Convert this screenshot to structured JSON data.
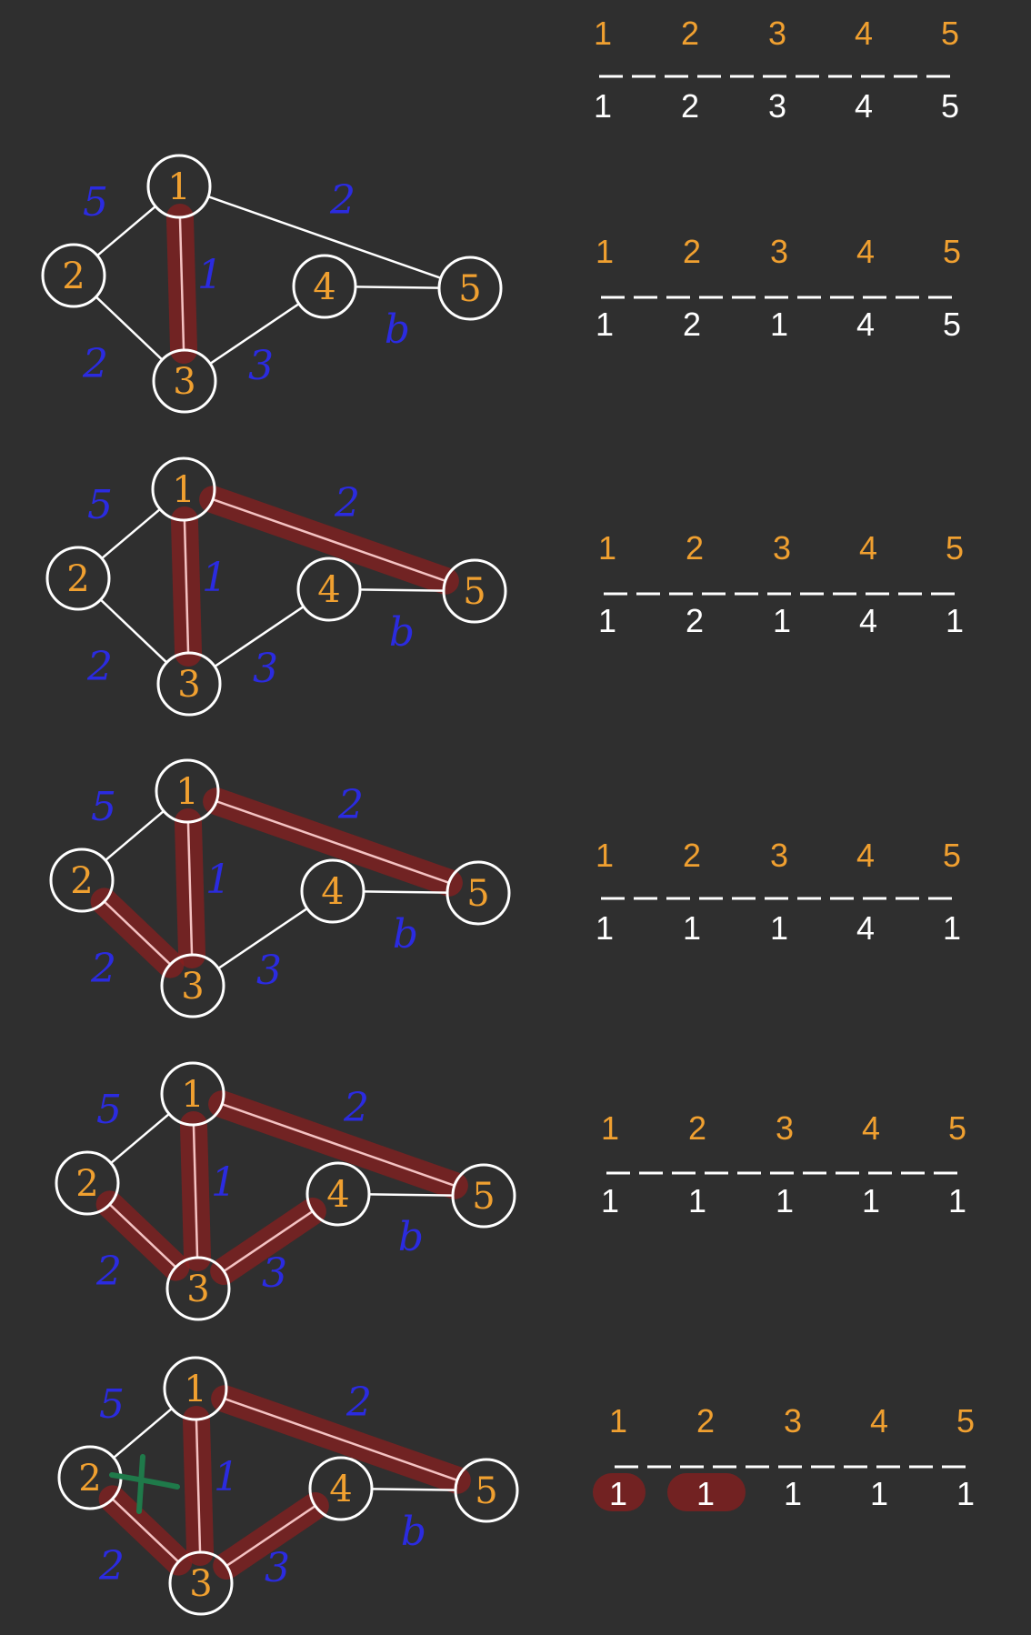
{
  "graph": {
    "nodes": [
      "1",
      "2",
      "3",
      "4",
      "5"
    ],
    "edges": [
      {
        "id": "1-2",
        "from": "1",
        "to": "2",
        "weight": "5"
      },
      {
        "id": "1-3",
        "from": "1",
        "to": "3",
        "weight": "1"
      },
      {
        "id": "1-5",
        "from": "1",
        "to": "5",
        "weight": "2"
      },
      {
        "id": "2-3",
        "from": "2",
        "to": "3",
        "weight": "2"
      },
      {
        "id": "3-4",
        "from": "3",
        "to": "4",
        "weight": "3"
      },
      {
        "id": "4-5",
        "from": "4",
        "to": "5",
        "weight": "b"
      }
    ]
  },
  "header_row": {
    "labels": [
      "1",
      "2",
      "3",
      "4",
      "5"
    ],
    "values": [
      "1",
      "2",
      "3",
      "4",
      "5"
    ]
  },
  "steps": [
    {
      "highlighted": [
        "1-3"
      ],
      "labels": [
        "1",
        "2",
        "3",
        "4",
        "5"
      ],
      "values": [
        "1",
        "2",
        "1",
        "4",
        "5"
      ]
    },
    {
      "highlighted": [
        "1-3",
        "1-5"
      ],
      "labels": [
        "1",
        "2",
        "3",
        "4",
        "5"
      ],
      "values": [
        "1",
        "2",
        "1",
        "4",
        "1"
      ]
    },
    {
      "highlighted": [
        "1-3",
        "1-5",
        "2-3"
      ],
      "labels": [
        "1",
        "2",
        "3",
        "4",
        "5"
      ],
      "values": [
        "1",
        "1",
        "1",
        "4",
        "1"
      ]
    },
    {
      "highlighted": [
        "1-3",
        "1-5",
        "2-3",
        "3-4"
      ],
      "labels": [
        "1",
        "2",
        "3",
        "4",
        "5"
      ],
      "values": [
        "1",
        "1",
        "1",
        "1",
        "1"
      ]
    },
    {
      "highlighted": [
        "1-3",
        "1-5",
        "2-3",
        "3-4"
      ],
      "crossed": [
        "1-2"
      ],
      "pill_values": [
        0,
        1
      ],
      "labels": [
        "1",
        "2",
        "3",
        "4",
        "5"
      ],
      "values": [
        "1",
        "1",
        "1",
        "1",
        "1"
      ]
    }
  ],
  "colors": {
    "background": "#2f2f2f",
    "node_label": "#f0a030",
    "weight": "#2b2be0",
    "highlight": "#8a1f1f",
    "cross": "#1f7a4a"
  }
}
